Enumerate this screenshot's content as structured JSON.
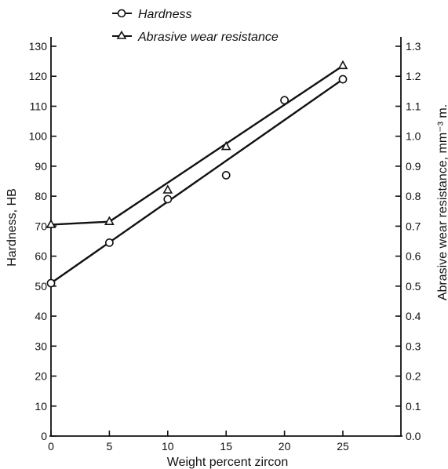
{
  "chart_data": {
    "type": "scatter",
    "title": "",
    "xlabel": "Weight percent zircon",
    "ylabel": "Hardness, HB",
    "y2label": "Abrasive wear resistance, mm⁻³ m.",
    "xlim": [
      0,
      30
    ],
    "ylim": [
      0,
      130
    ],
    "y2lim": [
      0,
      1.3
    ],
    "x_ticks": [
      0,
      5,
      10,
      15,
      20,
      25
    ],
    "x_tick_labels": [
      "0",
      "5",
      "10",
      "15",
      "20",
      "25"
    ],
    "y_ticks": [
      0,
      10,
      20,
      30,
      40,
      50,
      60,
      70,
      80,
      90,
      100,
      110,
      120,
      130
    ],
    "y_tick_labels": [
      "0",
      "10",
      "20",
      "30",
      "40",
      "50",
      "60",
      "70",
      "80",
      "90",
      "100",
      "110",
      "120",
      "130"
    ],
    "y2_ticks": [
      0,
      0.1,
      0.2,
      0.3,
      0.4,
      0.5,
      0.6,
      0.7,
      0.8,
      0.9,
      1.0,
      1.1,
      1.2,
      1.3
    ],
    "y2_tick_labels": [
      "0.0",
      "0.1",
      "0.2",
      "0.3",
      "0.4",
      "0.5",
      "0.6",
      "0.7",
      "0.8",
      "0.9",
      "1.0",
      "1.1",
      "1.2",
      "1.3"
    ],
    "grid": false,
    "legend_position": "top",
    "series": [
      {
        "name": "Hardness",
        "marker": "circle",
        "axis": "left",
        "x": [
          0,
          5,
          10,
          15,
          20,
          25
        ],
        "y": [
          51,
          64.5,
          79,
          87,
          112,
          119
        ]
      },
      {
        "name": "Abrasive wear resistance",
        "marker": "triangle",
        "axis": "right",
        "x": [
          0,
          5,
          10,
          15,
          25
        ],
        "y": [
          0.705,
          0.715,
          0.82,
          0.965,
          1.235
        ]
      }
    ]
  }
}
